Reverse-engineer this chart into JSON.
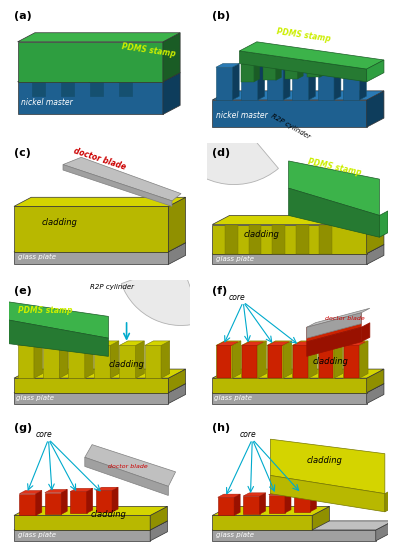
{
  "bg_color": "#ffffff",
  "panel_labels": [
    "(a)",
    "(b)",
    "(c)",
    "(d)",
    "(e)",
    "(f)",
    "(g)",
    "(h)"
  ],
  "colors": {
    "green_top": "#3cb34a",
    "green_mid": "#2e9e40",
    "green_dark": "#267a32",
    "green_side": "#1a5c25",
    "blue_top": "#2a7ab5",
    "blue_mid": "#1e6090",
    "blue_dark": "#155070",
    "blue_side": "#0e3d5c",
    "yellow_top": "#d4d400",
    "yellow_mid": "#b8b800",
    "yellow_side": "#909000",
    "yellow_dark": "#787800",
    "gray_top": "#c0c0c0",
    "gray_mid": "#a0a0a0",
    "gray_side": "#808080",
    "gray_dark": "#606060",
    "red_core": "#cc2200",
    "red_top": "#e03318",
    "red_side": "#991100",
    "white_cyl": "#e8e8e8",
    "cyan_arrow": "#00aacc",
    "green_label": "#ccee00",
    "white": "#ffffff"
  }
}
